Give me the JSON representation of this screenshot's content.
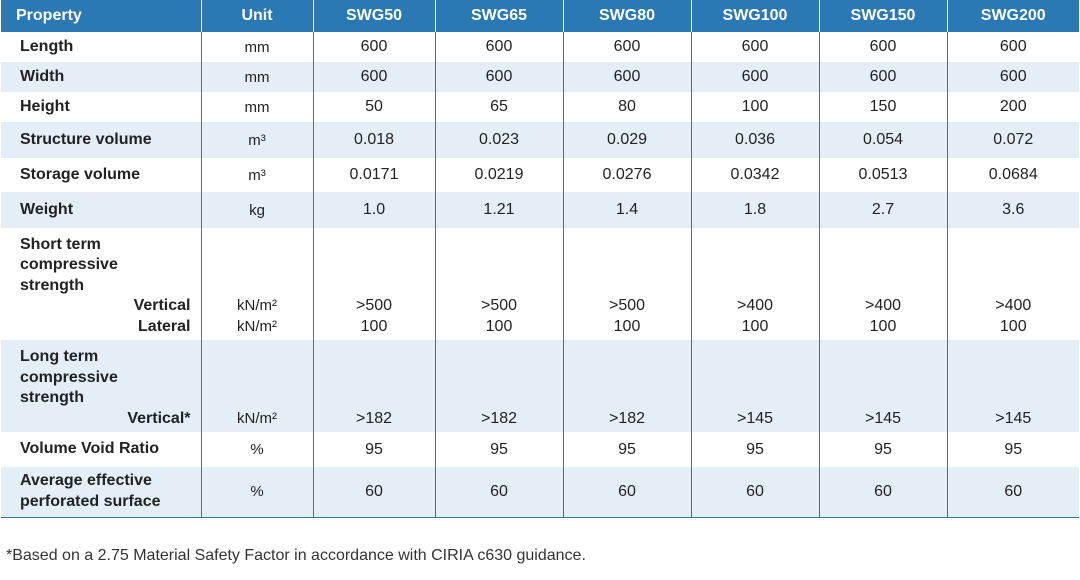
{
  "table": {
    "headers": [
      "Property",
      "Unit",
      "SWG50",
      "SWG65",
      "SWG80",
      "SWG100",
      "SWG150",
      "SWG200"
    ],
    "rows": [
      {
        "property": "Length",
        "unit": "mm",
        "values": [
          "600",
          "600",
          "600",
          "600",
          "600",
          "600"
        ]
      },
      {
        "property": "Width",
        "unit": "mm",
        "values": [
          "600",
          "600",
          "600",
          "600",
          "600",
          "600"
        ]
      },
      {
        "property": "Height",
        "unit": "mm",
        "values": [
          "50",
          "65",
          "80",
          "100",
          "150",
          "200"
        ]
      },
      {
        "property": "Structure volume",
        "unit": "m³",
        "values": [
          "0.018",
          "0.023",
          "0.029",
          "0.036",
          "0.054",
          "0.072"
        ]
      },
      {
        "property": "Storage volume",
        "unit": "m³",
        "values": [
          "0.0171",
          "0.0219",
          "0.0276",
          "0.0342",
          "0.0513",
          "0.0684"
        ]
      },
      {
        "property": "Weight",
        "unit": "kg",
        "values": [
          "1.0",
          "1.21",
          "1.4",
          "1.8",
          "2.7",
          "3.6"
        ]
      }
    ],
    "short_term": {
      "lines": [
        "Short term",
        "compressive",
        "strength"
      ],
      "vertical_label": "Vertical",
      "lateral_label": "Lateral",
      "vertical_unit": "kN/m²",
      "lateral_unit": "kN/m²",
      "vertical_values": [
        ">500",
        ">500",
        ">500",
        ">400",
        ">400",
        ">400"
      ],
      "lateral_values": [
        "100",
        "100",
        "100",
        "100",
        "100",
        "100"
      ]
    },
    "long_term": {
      "lines": [
        "Long term",
        "compressive",
        "strength"
      ],
      "vertical_label": "Vertical*",
      "vertical_unit": "kN/m²",
      "vertical_values": [
        ">182",
        ">182",
        ">182",
        ">145",
        ">145",
        ">145"
      ]
    },
    "void_ratio": {
      "property": "Volume Void Ratio",
      "unit": "%",
      "values": [
        "95",
        "95",
        "95",
        "95",
        "95",
        "95"
      ]
    },
    "perforated": {
      "lines": [
        "Average effective",
        "perforated surface"
      ],
      "unit": "%",
      "values": [
        "60",
        "60",
        "60",
        "60",
        "60",
        "60"
      ]
    }
  },
  "footnote": "*Based on a 2.75 Material Safety Factor in accordance with CIRIA c630 guidance."
}
